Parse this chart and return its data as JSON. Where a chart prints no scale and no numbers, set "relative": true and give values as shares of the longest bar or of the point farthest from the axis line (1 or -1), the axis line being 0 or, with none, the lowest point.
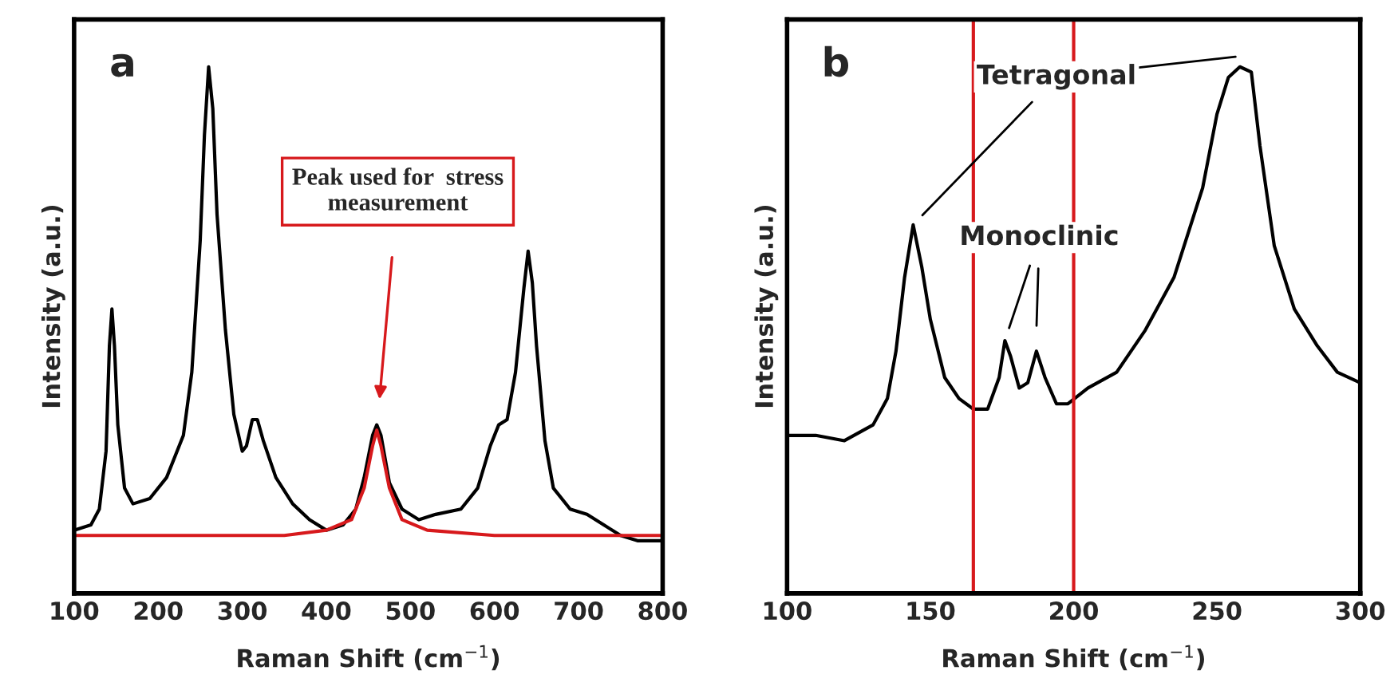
{
  "chart_data": [
    {
      "type": "line",
      "relative": true,
      "xlabel": "Raman Shift (cm$^{−1}$)",
      "ylabel": "Intensity (a.u.)",
      "xlim": [
        100,
        800
      ],
      "xticks": [
        100,
        200,
        300,
        400,
        500,
        600,
        700,
        800
      ],
      "annotations": [
        "a",
        "Peak used for  stress\nmeasurement"
      ],
      "series": [
        {
          "color": "#000000",
          "x": [
            100,
            120,
            130,
            138,
            142,
            145,
            148,
            152,
            160,
            170,
            190,
            210,
            230,
            240,
            250,
            255,
            260,
            265,
            270,
            280,
            290,
            300,
            305,
            312,
            318,
            325,
            340,
            360,
            380,
            400,
            420,
            435,
            445,
            455,
            460,
            465,
            475,
            490,
            510,
            530,
            560,
            580,
            595,
            605,
            615,
            625,
            635,
            640,
            645,
            650,
            660,
            670,
            690,
            710,
            730,
            750,
            770,
            800
          ],
          "values": [
            0.12,
            0.13,
            0.16,
            0.27,
            0.47,
            0.54,
            0.47,
            0.32,
            0.2,
            0.17,
            0.18,
            0.22,
            0.3,
            0.42,
            0.67,
            0.87,
            1.0,
            0.92,
            0.72,
            0.5,
            0.34,
            0.27,
            0.28,
            0.33,
            0.33,
            0.29,
            0.22,
            0.17,
            0.14,
            0.12,
            0.13,
            0.16,
            0.22,
            0.3,
            0.32,
            0.3,
            0.21,
            0.16,
            0.14,
            0.15,
            0.16,
            0.2,
            0.28,
            0.32,
            0.33,
            0.42,
            0.58,
            0.65,
            0.59,
            0.47,
            0.29,
            0.2,
            0.16,
            0.15,
            0.13,
            0.11,
            0.1,
            0.1
          ]
        },
        {
          "color": "#d7191c",
          "x": [
            100,
            350,
            400,
            430,
            445,
            455,
            460,
            465,
            475,
            490,
            520,
            600,
            800
          ],
          "values": [
            0.11,
            0.11,
            0.12,
            0.14,
            0.2,
            0.28,
            0.31,
            0.28,
            0.2,
            0.14,
            0.12,
            0.11,
            0.11
          ]
        }
      ]
    },
    {
      "type": "line",
      "relative": true,
      "xlabel": "Raman Shift (cm$^{−1}$)",
      "ylabel": "Intensity (a.u.)",
      "xlim": [
        100,
        300
      ],
      "xticks": [
        100,
        150,
        200,
        250,
        300
      ],
      "annotations": [
        "b",
        {
          "text": "Tetragonal",
          "x": 144,
          "y": 0.7
        },
        {
          "text": "Monoclinic",
          "x": 176,
          "y": 0.48
        }
      ],
      "ref_lines": [
        {
          "axis": "x",
          "value": 165,
          "color": "#d7191c"
        },
        {
          "axis": "x",
          "value": 200,
          "color": "#d7191c"
        }
      ],
      "series": [
        {
          "color": "#000000",
          "x": [
            100,
            110,
            120,
            130,
            135,
            138,
            141,
            144,
            147,
            150,
            155,
            160,
            165,
            170,
            174,
            176,
            178,
            181,
            184,
            187,
            190,
            194,
            198,
            205,
            215,
            225,
            235,
            245,
            250,
            254,
            258,
            262,
            265,
            270,
            277,
            285,
            292,
            300
          ],
          "values": [
            0.3,
            0.3,
            0.29,
            0.32,
            0.37,
            0.46,
            0.6,
            0.7,
            0.62,
            0.52,
            0.41,
            0.37,
            0.35,
            0.35,
            0.41,
            0.48,
            0.45,
            0.39,
            0.4,
            0.46,
            0.41,
            0.36,
            0.36,
            0.39,
            0.42,
            0.5,
            0.6,
            0.77,
            0.91,
            0.98,
            1.0,
            0.99,
            0.85,
            0.66,
            0.54,
            0.47,
            0.42,
            0.4
          ]
        }
      ]
    }
  ]
}
